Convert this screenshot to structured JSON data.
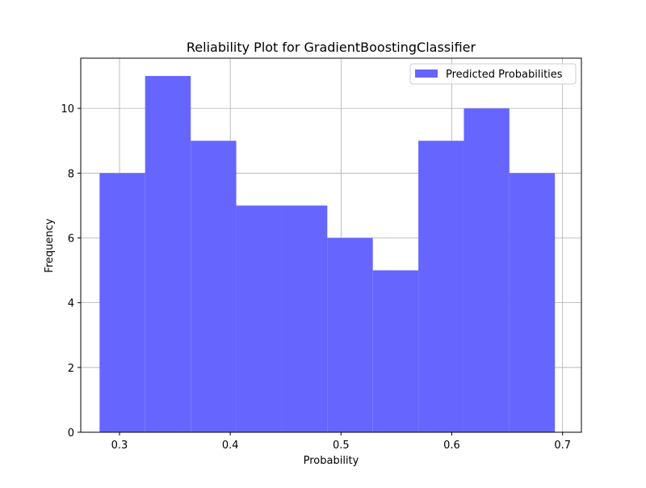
{
  "chart_data": {
    "type": "bar",
    "title": "Reliability Plot for GradientBoostingClassifier",
    "xlabel": "Probability",
    "ylabel": "Frequency",
    "xlim": [
      0.265,
      0.717
    ],
    "ylim": [
      0,
      11.55
    ],
    "xticks": [
      0.3,
      0.4,
      0.5,
      0.6,
      0.7
    ],
    "xtick_labels": [
      "0.3",
      "0.4",
      "0.5",
      "0.6",
      "0.7"
    ],
    "yticks": [
      0,
      2,
      4,
      6,
      8,
      10
    ],
    "ytick_labels": [
      "0",
      "2",
      "4",
      "6",
      "8",
      "10"
    ],
    "grid": true,
    "legend_position": "top-right",
    "series": [
      {
        "name": "Predicted Probabilities",
        "color": "#6666ff",
        "bins": [
          {
            "x0": 0.282,
            "x1": 0.3231,
            "value": 8
          },
          {
            "x0": 0.3231,
            "x1": 0.3643,
            "value": 11
          },
          {
            "x0": 0.3643,
            "x1": 0.4054,
            "value": 9
          },
          {
            "x0": 0.4054,
            "x1": 0.4465,
            "value": 7
          },
          {
            "x0": 0.4465,
            "x1": 0.4876,
            "value": 7
          },
          {
            "x0": 0.4876,
            "x1": 0.5287,
            "value": 6
          },
          {
            "x0": 0.5287,
            "x1": 0.5698,
            "value": 5
          },
          {
            "x0": 0.5698,
            "x1": 0.6109,
            "value": 9
          },
          {
            "x0": 0.6109,
            "x1": 0.652,
            "value": 10
          },
          {
            "x0": 0.652,
            "x1": 0.6931,
            "value": 8
          }
        ]
      }
    ]
  }
}
